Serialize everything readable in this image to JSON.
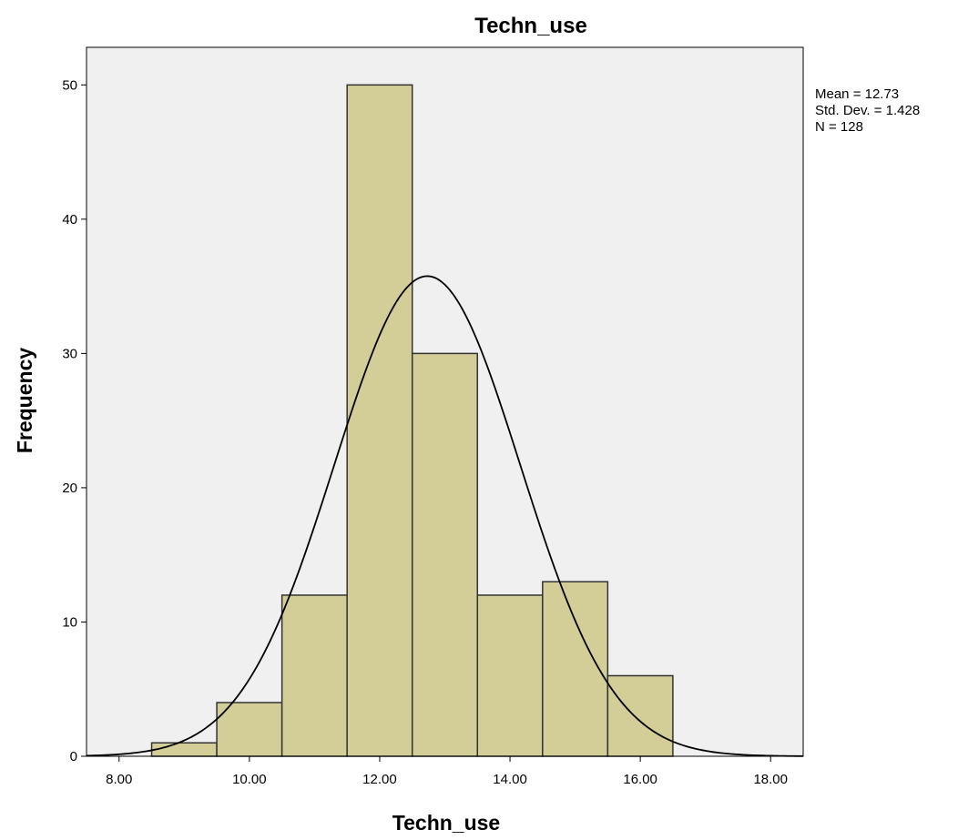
{
  "chart_data": {
    "type": "bar",
    "title": "Techn_use",
    "xlabel": "Techn_use",
    "ylabel": "Frequency",
    "xlim": [
      7.5,
      18.5
    ],
    "ylim": [
      0,
      52.8
    ],
    "x_ticks": [
      8,
      10,
      12,
      14,
      16,
      18
    ],
    "x_tick_labels": [
      "8.00",
      "10.00",
      "12.00",
      "14.00",
      "16.00",
      "18.00"
    ],
    "y_ticks": [
      0,
      10,
      20,
      30,
      40,
      50
    ],
    "y_tick_labels": [
      "0",
      "10",
      "20",
      "30",
      "40",
      "50"
    ],
    "bins": [
      {
        "x0": 8.5,
        "x1": 9.5,
        "count": 1
      },
      {
        "x0": 9.5,
        "x1": 10.5,
        "count": 4
      },
      {
        "x0": 10.5,
        "x1": 11.5,
        "count": 12
      },
      {
        "x0": 11.5,
        "x1": 12.5,
        "count": 50
      },
      {
        "x0": 12.5,
        "x1": 13.5,
        "count": 30
      },
      {
        "x0": 13.5,
        "x1": 14.5,
        "count": 12
      },
      {
        "x0": 14.5,
        "x1": 15.5,
        "count": 13
      },
      {
        "x0": 15.5,
        "x1": 16.5,
        "count": 6
      }
    ],
    "normal_curve": {
      "mean": 12.73,
      "std": 1.428,
      "n": 128,
      "bin_width": 1
    },
    "stats_lines": [
      "Mean = 12.73",
      "Std. Dev. = 1.428",
      "N = 128"
    ],
    "grid": false,
    "legend": "none",
    "colors": {
      "plot_bg": "#f0f0f0",
      "bar_fill": "#d3ce97",
      "bar_stroke": "#333333",
      "curve": "#000000"
    }
  }
}
